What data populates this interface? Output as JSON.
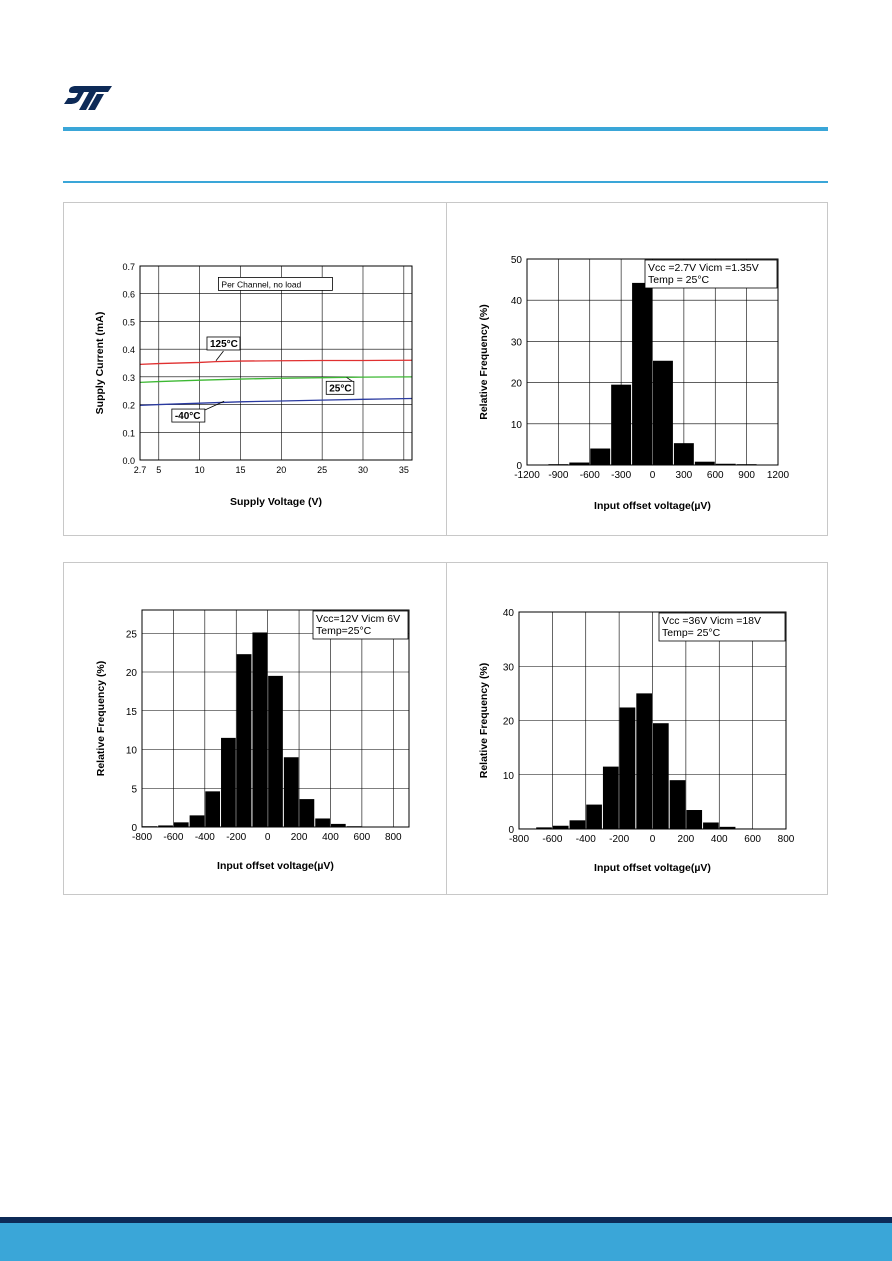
{
  "brand": {
    "accent_color": "#3aa6d8",
    "footer_dark_color": "#0d2a57",
    "logo_icon": "st-logo-icon"
  },
  "chart_data": [
    {
      "type": "line",
      "title": "",
      "xlabel": "Supply Voltage (V)",
      "ylabel": "Supply Current (mA)",
      "xlim": [
        2.7,
        36
      ],
      "ylim": [
        0,
        0.7
      ],
      "x_ticks": [
        2.7,
        5,
        10,
        15,
        20,
        25,
        30,
        35
      ],
      "x_tick_labels": [
        "2.7",
        "5",
        "10",
        "15",
        "20",
        "25",
        "30",
        "35"
      ],
      "y_ticks": [
        0,
        0.1,
        0.2,
        0.3,
        0.4,
        0.5,
        0.6,
        0.7
      ],
      "y_tick_labels": [
        "0.0",
        "0.1",
        "0.2",
        "0.3",
        "0.4",
        "0.5",
        "0.6",
        "0.7"
      ],
      "grid": true,
      "annotations": [
        {
          "text": "Per Channel, no load",
          "x": 12.3,
          "y": 0.63
        },
        {
          "text": "125°C",
          "x": 10.9,
          "y": 0.415,
          "arrow_to": [
            12,
            0.358
          ]
        },
        {
          "text": "25°C",
          "x": 25.5,
          "y": 0.255,
          "arrow_to": [
            28,
            0.298
          ]
        },
        {
          "text": "-40°C",
          "x": 6.6,
          "y": 0.155,
          "arrow_to": [
            13,
            0.212
          ]
        }
      ],
      "series": [
        {
          "name": "125°C",
          "color": "#e03030",
          "x": [
            2.7,
            5,
            10,
            12,
            15,
            20,
            25,
            30,
            36
          ],
          "y": [
            0.345,
            0.348,
            0.352,
            0.355,
            0.357,
            0.358,
            0.359,
            0.359,
            0.36
          ]
        },
        {
          "name": "25°C",
          "color": "#3cb832",
          "x": [
            2.7,
            5,
            10,
            15,
            20,
            25,
            30,
            36
          ],
          "y": [
            0.28,
            0.283,
            0.288,
            0.292,
            0.295,
            0.297,
            0.299,
            0.3
          ]
        },
        {
          "name": "-40°C",
          "color": "#2a3aa0",
          "x": [
            2.7,
            5,
            10,
            15,
            20,
            25,
            30,
            36
          ],
          "y": [
            0.197,
            0.2,
            0.205,
            0.21,
            0.213,
            0.216,
            0.219,
            0.222
          ]
        }
      ]
    },
    {
      "type": "bar",
      "title": "",
      "xlabel": "Input offset voltage(µV)",
      "ylabel": "Relative Frequency (%)",
      "xlim": [
        -1200,
        1200
      ],
      "ylim": [
        0,
        50
      ],
      "x_ticks": [
        -1200,
        -900,
        -600,
        -300,
        0,
        300,
        600,
        900,
        1200
      ],
      "y_ticks": [
        0,
        10,
        20,
        30,
        40,
        50
      ],
      "grid": true,
      "legend_text": [
        "Vcc =2.7V Vicm =1.35V",
        "Temp = 25°C"
      ],
      "legend_position": "top-right",
      "bin_width": 200,
      "bin_centers": [
        -1100,
        -900,
        -700,
        -500,
        -300,
        -100,
        100,
        300,
        500,
        700,
        900,
        1100
      ],
      "values": [
        0.1,
        0.2,
        0.6,
        4,
        19.5,
        44.2,
        25.3,
        5.3,
        0.8,
        0.3,
        0.2,
        0.1
      ]
    },
    {
      "type": "bar",
      "title": "",
      "xlabel": "Input offset voltage(µV)",
      "ylabel": "Relative Frequency (%)",
      "xlim": [
        -800,
        900
      ],
      "ylim": [
        0,
        28
      ],
      "x_ticks": [
        -800,
        -600,
        -400,
        -200,
        0,
        200,
        400,
        600,
        800
      ],
      "y_ticks": [
        0,
        5,
        10,
        15,
        20,
        25
      ],
      "grid": true,
      "legend_text": [
        "Vcc=12V Vicm 6V",
        "Temp=25°C"
      ],
      "legend_position": "top-right",
      "bin_width": 100,
      "bin_centers": [
        -750,
        -650,
        -550,
        -450,
        -350,
        -250,
        -150,
        -50,
        50,
        150,
        250,
        350,
        450,
        550
      ],
      "values": [
        0.1,
        0.2,
        0.6,
        1.5,
        4.6,
        11.5,
        22.3,
        25.1,
        19.5,
        9,
        3.6,
        1.1,
        0.4,
        0.1
      ]
    },
    {
      "type": "bar",
      "title": "",
      "xlabel": "Input offset voltage(µV)",
      "ylabel": "Relative Frequency (%)",
      "xlim": [
        -800,
        800
      ],
      "ylim": [
        0,
        40
      ],
      "x_ticks": [
        -800,
        -600,
        -400,
        -200,
        0,
        200,
        400,
        600,
        800
      ],
      "y_ticks": [
        0,
        10,
        20,
        30,
        40
      ],
      "grid": true,
      "legend_text": [
        "Vcc =36V Vicm =18V",
        "Temp= 25°C"
      ],
      "legend_position": "top-right",
      "bin_width": 100,
      "bin_centers": [
        -750,
        -650,
        -550,
        -450,
        -350,
        -250,
        -150,
        -50,
        50,
        150,
        250,
        350,
        450,
        550
      ],
      "values": [
        0.1,
        0.3,
        0.6,
        1.6,
        4.5,
        11.5,
        22.4,
        25,
        19.5,
        9,
        3.5,
        1.2,
        0.4,
        0.1
      ]
    }
  ]
}
